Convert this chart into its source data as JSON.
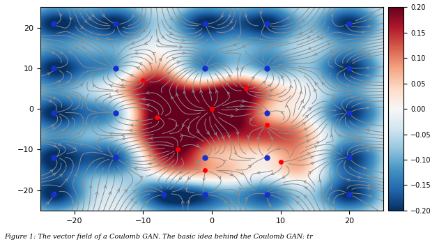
{
  "xlim": [
    -25,
    25
  ],
  "ylim": [
    -25,
    25
  ],
  "figsize": [
    6.4,
    3.47
  ],
  "dpi": 100,
  "colorbar_vmin": -0.2,
  "colorbar_vmax": 0.2,
  "red_points": [
    [
      -10,
      7
    ],
    [
      -8,
      -2
    ],
    [
      -5,
      -10
    ],
    [
      0,
      0
    ],
    [
      5,
      5
    ],
    [
      8,
      -4
    ],
    [
      10,
      -13
    ],
    [
      -1,
      -15
    ]
  ],
  "blue_points": [
    [
      -23,
      21
    ],
    [
      -14,
      21
    ],
    [
      -1,
      21
    ],
    [
      8,
      21
    ],
    [
      20,
      21
    ],
    [
      -23,
      10
    ],
    [
      -14,
      10
    ],
    [
      -1,
      10
    ],
    [
      8,
      10
    ],
    [
      20,
      10
    ],
    [
      -23,
      -1
    ],
    [
      -14,
      -1
    ],
    [
      8,
      -1
    ],
    [
      20,
      -1
    ],
    [
      -23,
      -12
    ],
    [
      -14,
      -12
    ],
    [
      -1,
      -12
    ],
    [
      8,
      -12
    ],
    [
      20,
      -12
    ],
    [
      -23,
      -21
    ],
    [
      -7,
      -21
    ],
    [
      -1,
      -21
    ],
    [
      8,
      -21
    ],
    [
      20,
      -21
    ]
  ],
  "caption": "Figure 1: The vector field of a Coulomb GAN. The basic idea behind the Coulomb GAN: tr",
  "stream_color": [
    0.55,
    0.55,
    0.55
  ],
  "stream_density": 2.2,
  "stream_linewidth": 0.7,
  "stream_arrowsize": 0.7,
  "red_dot_color": "#FF0000",
  "blue_dot_color": "#1530cc",
  "gaussian_sigma_red": 4.5,
  "gaussian_sigma_blue": 3.5,
  "red_amplitude": 0.2,
  "blue_amplitude": -0.2,
  "cmap": "RdBu_r"
}
